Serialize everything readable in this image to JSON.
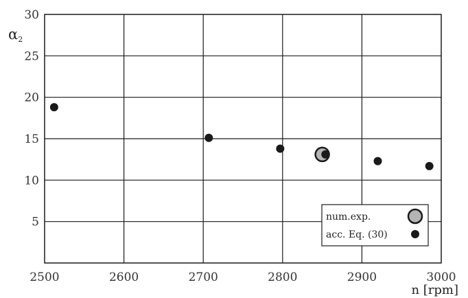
{
  "chart_data": {
    "type": "scatter",
    "title": "",
    "xlabel": "n [rpm]",
    "ylabel": "α2",
    "ylabel_main": "α",
    "ylabel_sub": "2",
    "xlim": [
      2500,
      3000
    ],
    "ylim": [
      0,
      30
    ],
    "x_ticks": [
      2500,
      2600,
      2700,
      2800,
      2900,
      3000
    ],
    "y_ticks": [
      5,
      10,
      15,
      20,
      25,
      30
    ],
    "grid": true,
    "legend_position": "bottom-right",
    "series": [
      {
        "name": "num.exp.",
        "marker": "large-circle",
        "color": "#b4b4b4",
        "edge_color": "#1a1a1a",
        "points": [
          {
            "x": 2850,
            "y": 13.1
          }
        ]
      },
      {
        "name": "acc. Eq. (30)",
        "marker": "dot",
        "color": "#1a1a1a",
        "points": [
          {
            "x": 2512,
            "y": 18.8
          },
          {
            "x": 2707,
            "y": 15.1
          },
          {
            "x": 2797,
            "y": 13.8
          },
          {
            "x": 2854,
            "y": 13.1
          },
          {
            "x": 2920,
            "y": 12.3
          },
          {
            "x": 2985,
            "y": 11.7
          }
        ]
      }
    ]
  }
}
